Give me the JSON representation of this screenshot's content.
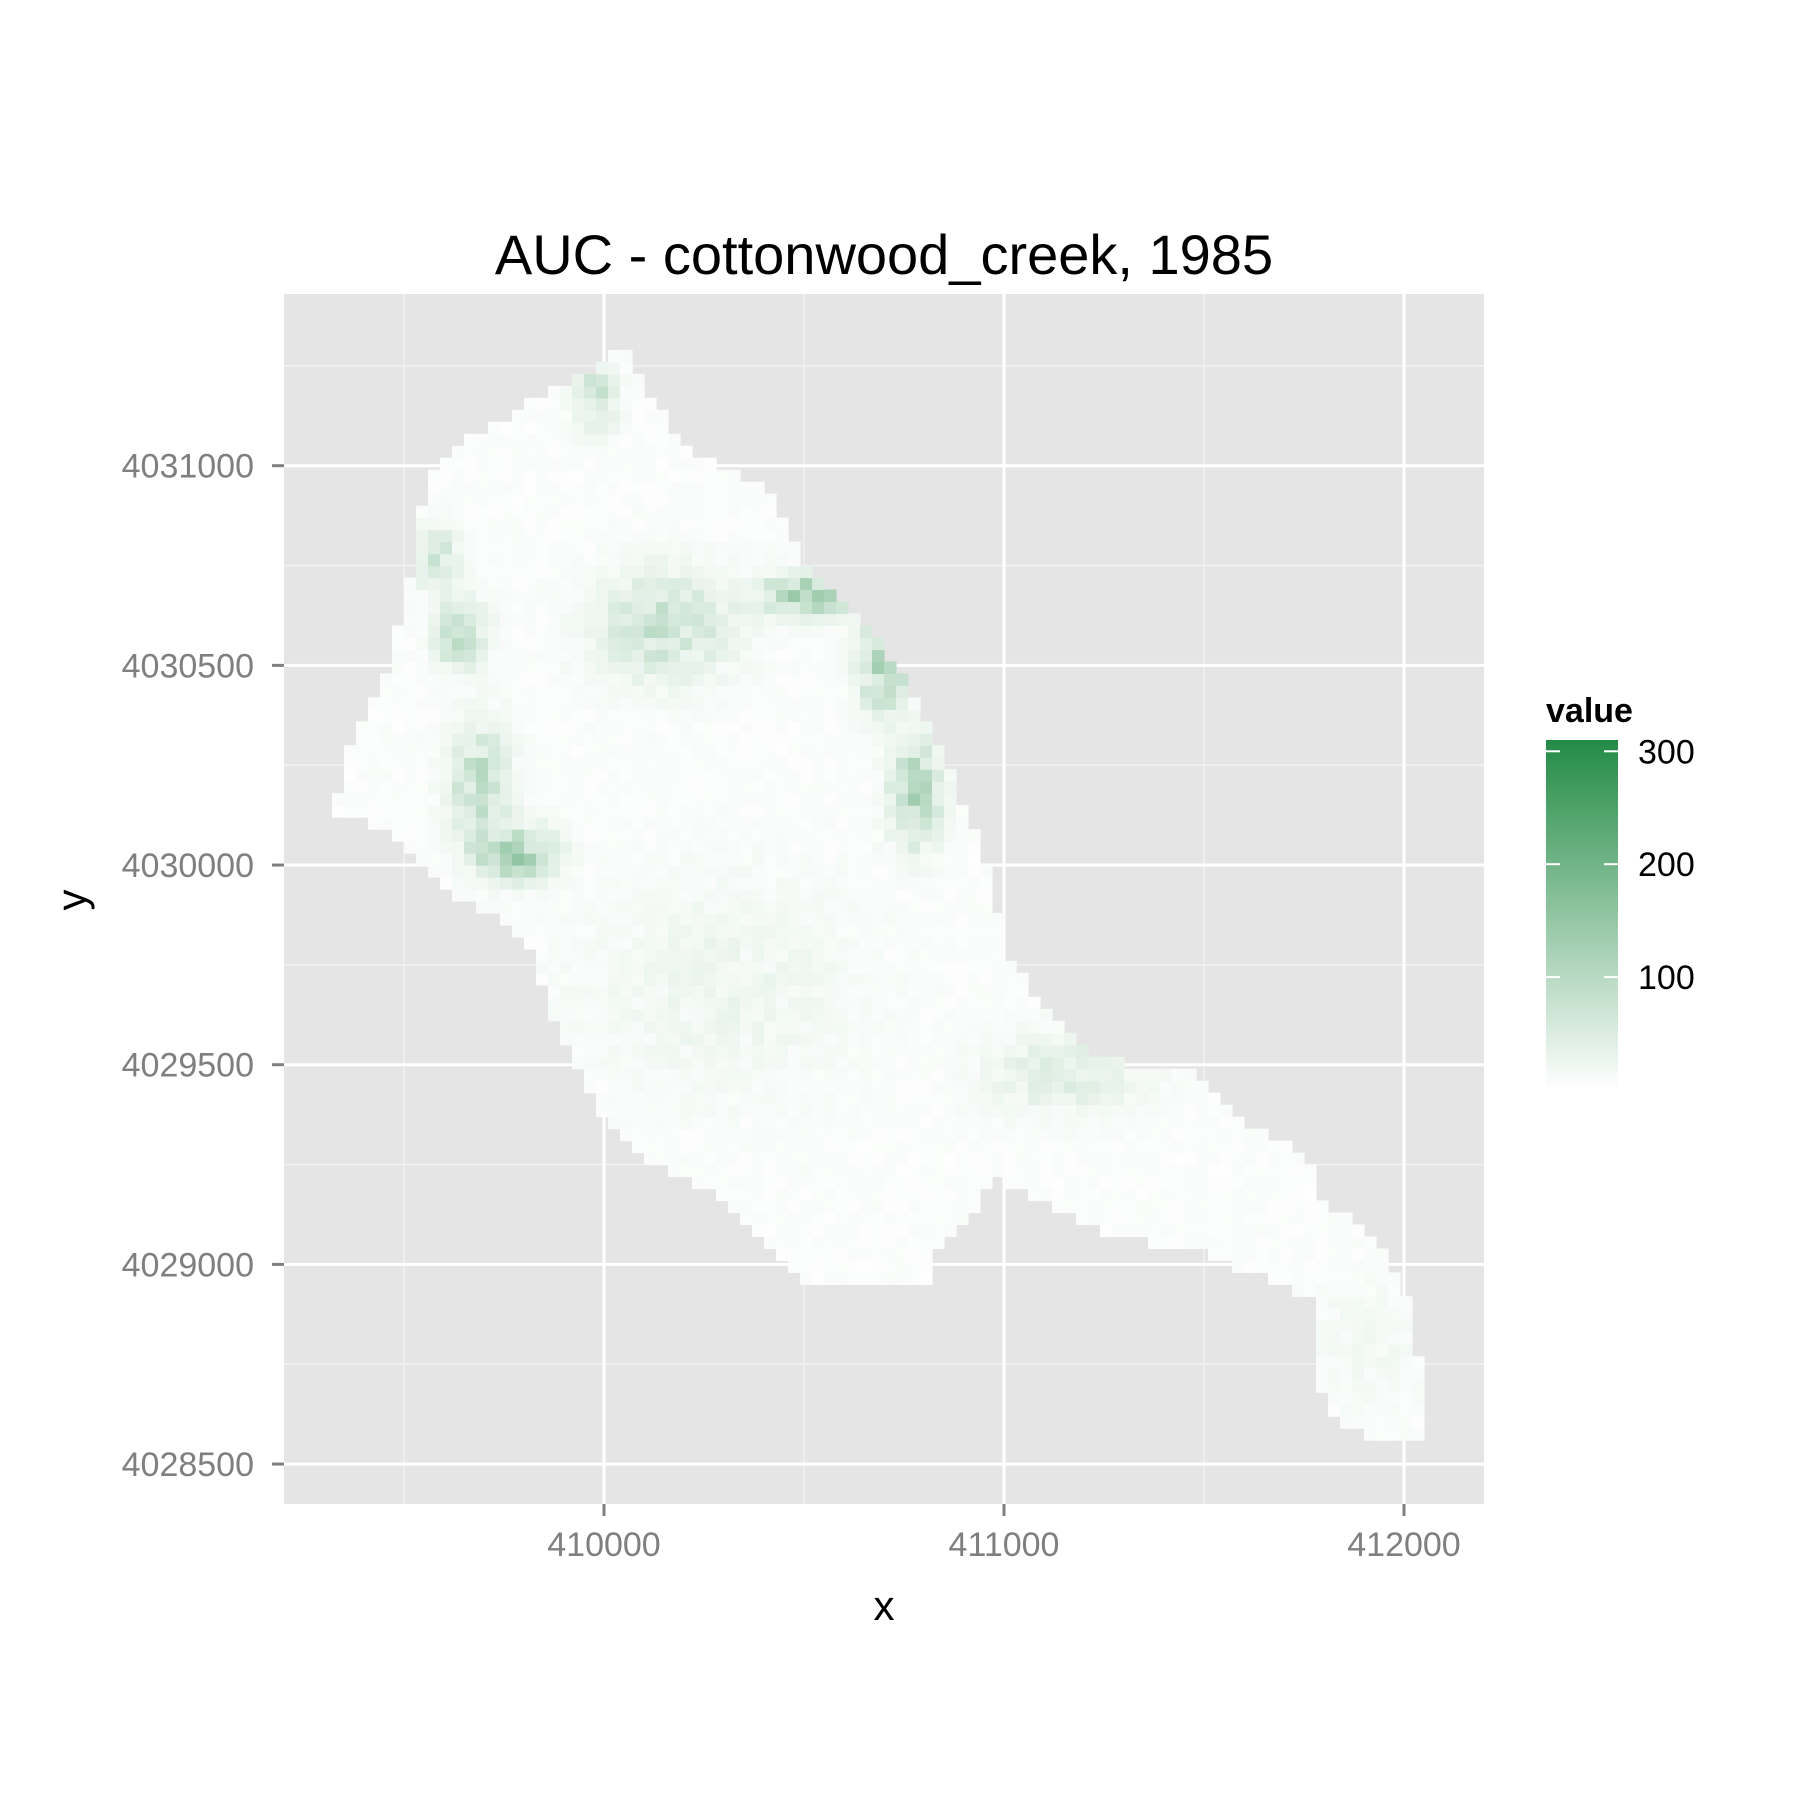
{
  "chart_data": {
    "type": "heatmap",
    "title": "AUC - cottonwood_creek, 1985",
    "xlabel": "x",
    "ylabel": "y",
    "xlim": [
      409200,
      412200
    ],
    "ylim": [
      4028400,
      4031430
    ],
    "x_ticks": [
      410000,
      411000,
      412000
    ],
    "x_tick_labels": [
      "410000",
      "411000",
      "412000"
    ],
    "x_minor": [
      409500,
      410500,
      411500
    ],
    "y_ticks": [
      4028500,
      4029000,
      4029500,
      4030000,
      4030500,
      4031000
    ],
    "y_tick_labels": [
      "4028500",
      "4029000",
      "4029500",
      "4030000",
      "4030500",
      "4031000"
    ],
    "y_minor": [
      4028750,
      4029250,
      4029750,
      4030250,
      4030750,
      4031250
    ],
    "grid": true,
    "panel_background": "#e5e5e5",
    "grid_color": "#ffffff",
    "cell_size": 30,
    "region_polygon": [
      [
        409980,
        4031250
      ],
      [
        410050,
        4031300
      ],
      [
        410100,
        4031200
      ],
      [
        410200,
        4031050
      ],
      [
        410400,
        4030950
      ],
      [
        410480,
        4030800
      ],
      [
        410550,
        4030700
      ],
      [
        410700,
        4030550
      ],
      [
        410840,
        4030300
      ],
      [
        410960,
        4030000
      ],
      [
        411000,
        4029800
      ],
      [
        411080,
        4029650
      ],
      [
        411230,
        4029530
      ],
      [
        411350,
        4029480
      ],
      [
        411470,
        4029480
      ],
      [
        411540,
        4029400
      ],
      [
        411690,
        4029310
      ],
      [
        411760,
        4029280
      ],
      [
        411800,
        4029160
      ],
      [
        411930,
        4029070
      ],
      [
        412000,
        4028950
      ],
      [
        412030,
        4028810
      ],
      [
        412060,
        4028560
      ],
      [
        411930,
        4028570
      ],
      [
        411840,
        4028600
      ],
      [
        411780,
        4028700
      ],
      [
        411780,
        4028900
      ],
      [
        411700,
        4028950
      ],
      [
        411520,
        4029020
      ],
      [
        411280,
        4029070
      ],
      [
        411080,
        4029160
      ],
      [
        410970,
        4029230
      ],
      [
        410940,
        4029150
      ],
      [
        410840,
        4029050
      ],
      [
        410820,
        4028960
      ],
      [
        410500,
        4028960
      ],
      [
        410400,
        4029060
      ],
      [
        410260,
        4029180
      ],
      [
        410100,
        4029270
      ],
      [
        409990,
        4029390
      ],
      [
        409870,
        4029630
      ],
      [
        409810,
        4029800
      ],
      [
        409720,
        4029870
      ],
      [
        409580,
        4029960
      ],
      [
        409450,
        4030080
      ],
      [
        409320,
        4030140
      ],
      [
        409360,
        4030280
      ],
      [
        409460,
        4030500
      ],
      [
        409510,
        4030680
      ],
      [
        409530,
        4030850
      ],
      [
        409560,
        4030970
      ],
      [
        409640,
        4031050
      ],
      [
        409800,
        4031150
      ]
    ],
    "base_value": 6,
    "hotspots": [
      {
        "x": 410520,
        "y": 4030680,
        "sx": 120,
        "sy": 50,
        "value": 110
      },
      {
        "x": 410700,
        "y": 4030500,
        "sx": 60,
        "sy": 120,
        "value": 95
      },
      {
        "x": 410780,
        "y": 4030180,
        "sx": 60,
        "sy": 120,
        "value": 105
      },
      {
        "x": 410150,
        "y": 4030600,
        "sx": 160,
        "sy": 130,
        "value": 65
      },
      {
        "x": 409780,
        "y": 4030030,
        "sx": 90,
        "sy": 60,
        "value": 115
      },
      {
        "x": 409690,
        "y": 4030200,
        "sx": 70,
        "sy": 140,
        "value": 80
      },
      {
        "x": 409640,
        "y": 4030580,
        "sx": 60,
        "sy": 80,
        "value": 80
      },
      {
        "x": 409580,
        "y": 4030770,
        "sx": 50,
        "sy": 70,
        "value": 70
      },
      {
        "x": 409980,
        "y": 4031180,
        "sx": 50,
        "sy": 90,
        "value": 60
      },
      {
        "x": 411150,
        "y": 4029480,
        "sx": 180,
        "sy": 90,
        "value": 40
      },
      {
        "x": 410300,
        "y": 4029700,
        "sx": 300,
        "sy": 250,
        "value": 18
      },
      {
        "x": 411900,
        "y": 4028800,
        "sx": 150,
        "sy": 150,
        "value": 10
      }
    ],
    "legend": {
      "title": "value",
      "position": "right",
      "min": 0,
      "max": 310,
      "low_color": "#ffffff",
      "high_color": "#238b45",
      "breaks": [
        100,
        200,
        300
      ],
      "break_labels": [
        "100",
        "200",
        "300"
      ]
    }
  }
}
